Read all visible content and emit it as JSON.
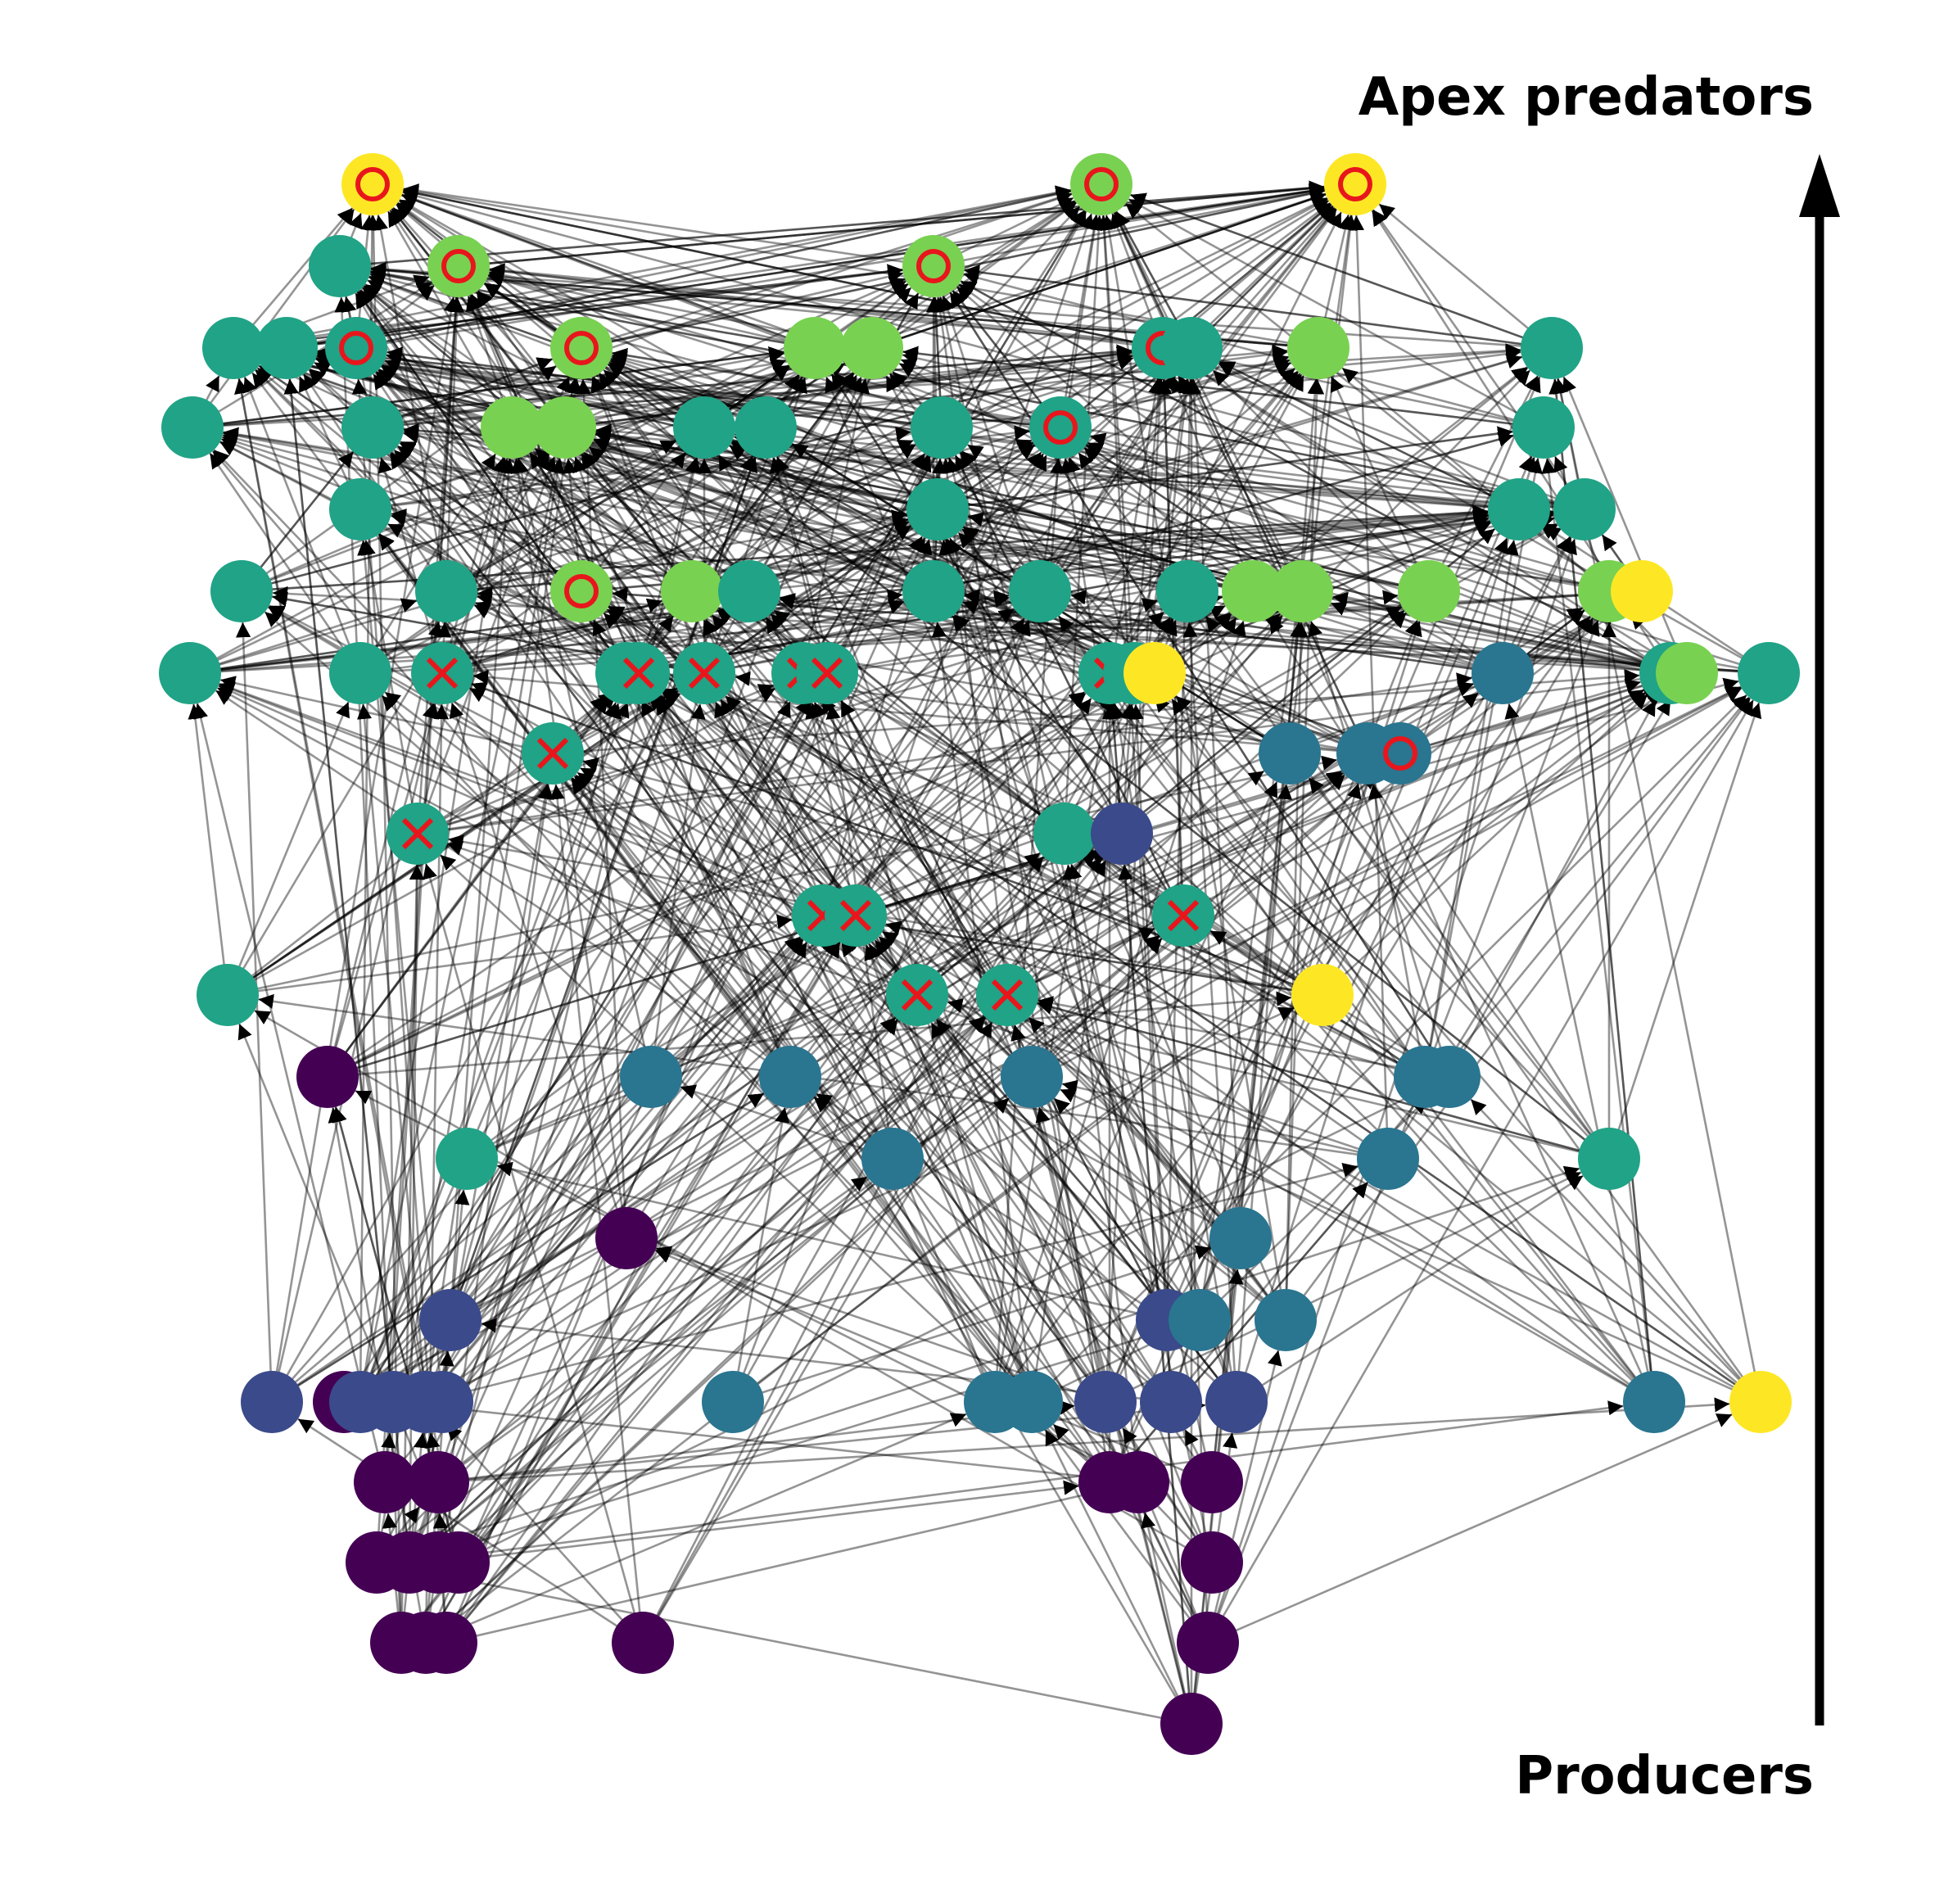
{
  "labels": {
    "top": "Apex predators",
    "bottom": "Producers"
  },
  "colors": {
    "level_1": "#440154",
    "level_2": "#3b4a8a",
    "level_3": "#2a7590",
    "level_4": "#20a386",
    "level_5": "#79d151",
    "level_6": "#fde725",
    "marker": "#e8161c",
    "edge": "#000000"
  },
  "legend_markers": {
    "o": "circle-marker",
    "x": "cross-marker"
  }
}
